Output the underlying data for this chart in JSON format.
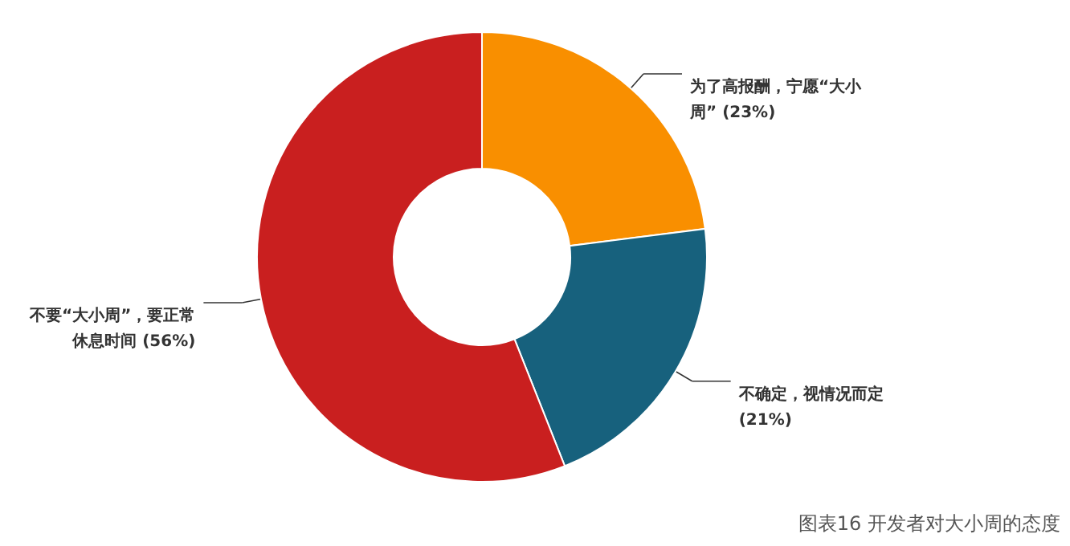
{
  "chart_data": {
    "type": "donut",
    "categories": [
      "为了高报酬，宁愿“大小周”",
      "不确定，视情况而定",
      "不要“大小周”，要正常休息时间"
    ],
    "values": [
      23,
      21,
      56
    ],
    "value_labels": [
      "(23%)",
      "(21%)",
      "(56%)"
    ],
    "colors": [
      "#f98f00",
      "#17617d",
      "#c91f1f"
    ],
    "annotations": [
      "图表16 开发者对大小周的态度"
    ]
  }
}
